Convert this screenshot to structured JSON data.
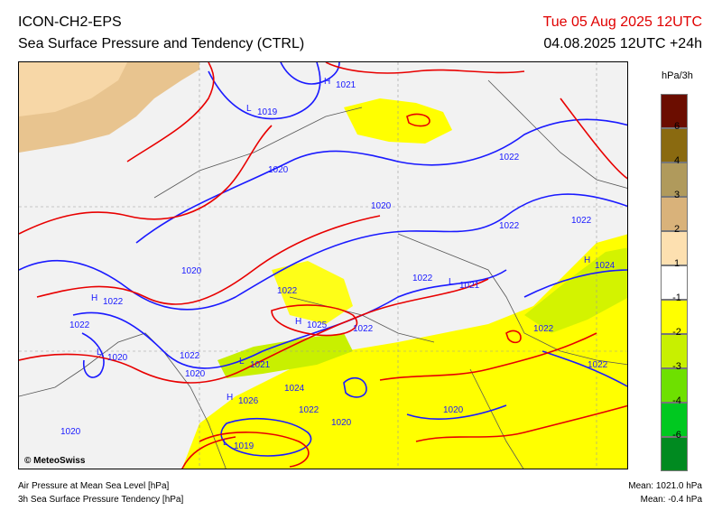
{
  "header": {
    "model": "ICON-CH2-EPS",
    "subtitle": "Sea Surface Pressure and Tendency (CTRL)",
    "valid_time": "Tue 05 Aug 2025 12UTC",
    "run_time": "04.08.2025 12UTC +24h"
  },
  "legend": {
    "unit": "hPa/3h",
    "bins": [
      {
        "label": "6",
        "color": "#6b0d00"
      },
      {
        "label": "4",
        "color": "#8a6a10"
      },
      {
        "label": "3",
        "color": "#b09a5c"
      },
      {
        "label": "2",
        "color": "#d9b27a"
      },
      {
        "label": "1",
        "color": "#fde0b0"
      },
      {
        "label": "-1",
        "color": "#ffffff"
      },
      {
        "label": "-2",
        "color": "#ffff00"
      },
      {
        "label": "-3",
        "color": "#c8f000"
      },
      {
        "label": "-4",
        "color": "#6ee000"
      },
      {
        "label": "-6",
        "color": "#00c820"
      },
      {
        "label": "",
        "color": "#008a20"
      }
    ]
  },
  "map": {
    "pressure_centers": [
      {
        "letter": "H",
        "value": "1021"
      },
      {
        "letter": "L",
        "value": "1019"
      },
      {
        "letter": "H",
        "value": "1022"
      },
      {
        "letter": "L",
        "value": "1020"
      },
      {
        "letter": "H",
        "value": "1025"
      },
      {
        "letter": "L",
        "value": "1021"
      },
      {
        "letter": "L",
        "value": "1021"
      },
      {
        "letter": "H",
        "value": "1026"
      },
      {
        "letter": "L",
        "value": "1019"
      },
      {
        "letter": "H",
        "value": "1024"
      }
    ],
    "isobar_labels": [
      "1020",
      "1020",
      "1020",
      "1022",
      "1022",
      "1022",
      "1022",
      "1022",
      "1022",
      "1024",
      "1022",
      "1020",
      "1020",
      "1022",
      "1022",
      "1022",
      "1022",
      "1020",
      "1020"
    ],
    "colors": {
      "isobar_low": "#1a1aff",
      "isobar_high": "#e80000",
      "land": "#f2f2f2",
      "coast": "#555555"
    }
  },
  "footer": {
    "credit": "© MeteoSwiss",
    "line1": "Air Pressure at Mean Sea Level [hPa]",
    "line2": "3h Sea Surface Pressure Tendency [hPa]",
    "mean1": "Mean: 1021.0 hPa",
    "mean2": "Mean:  -0.4 hPa"
  }
}
